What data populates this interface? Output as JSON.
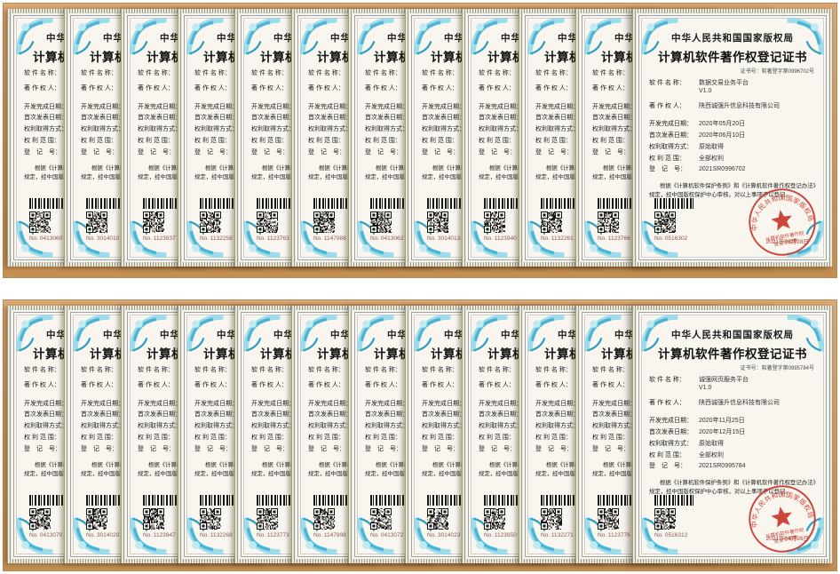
{
  "labels": {
    "authority": "中华人民共和国国家版权局",
    "title": "计算机软件著作权登记证书",
    "fields": {
      "name": "软 件 名 称：",
      "owner": "著 作 权 人：",
      "dev_date": "开发完成日期：",
      "pub_date": "首次发表日期：",
      "acq_method": "权利取得方式：",
      "scope": "权 利 范 围：",
      "reg_no": "登　记　号："
    },
    "statement_line1": "根据《计算机软件保护条例》和《计算机软件著作权登记办法》的",
    "statement_line2": "规定，经中国版权保护中心审核，对以上事项予以登记。",
    "seal_ring_text": "中华人民共和国国家版权局",
    "seal_inner_line1": "计算机软件著作权",
    "seal_inner_line2": "登记专用章"
  },
  "colors": {
    "panel": "#d29d64",
    "paper": "#f8f6ef",
    "flourish_teal": "#5cc3dd",
    "seal_red": "#c9382c",
    "serial_red": "#8a5a50"
  },
  "rows": [
    {
      "certs": [
        {
          "serial": "No. 0413060"
        },
        {
          "serial": "No. 3014010"
        },
        {
          "serial": "No. 1123937"
        },
        {
          "serial": "No. 1132258"
        },
        {
          "serial": "No. 1123763"
        },
        {
          "serial": "No. 1147988"
        },
        {
          "serial": "No. 0413062"
        },
        {
          "serial": "No. 3014013"
        },
        {
          "serial": "No. 1123940"
        },
        {
          "serial": "No. 1132261"
        },
        {
          "serial": "No. 1123766"
        },
        {
          "serial": "No. 0516302",
          "cert_no": "证书号：软著登字第0996702号",
          "name": "数据交易业务平台",
          "version": "V1.0",
          "owner": "陕西诚强升信息科技有限公司",
          "dev_date": "2020年05月20日",
          "pub_date": "2020年06月10日",
          "acq_method": "原始取得",
          "scope": "全部权利",
          "reg_no": "2021SR0996702",
          "seal_date": "2021年06月28日"
        }
      ]
    },
    {
      "certs": [
        {
          "serial": "No. 0413070"
        },
        {
          "serial": "No. 3014020"
        },
        {
          "serial": "No. 1123947"
        },
        {
          "serial": "No. 1132268"
        },
        {
          "serial": "No. 1123773"
        },
        {
          "serial": "No. 1147998"
        },
        {
          "serial": "No. 0413072"
        },
        {
          "serial": "No. 3014023"
        },
        {
          "serial": "No. 1123950"
        },
        {
          "serial": "No. 1132271"
        },
        {
          "serial": "No. 1123776"
        },
        {
          "serial": "No. 0516312",
          "cert_no": "证书号：软著登字第0995784号",
          "name": "诚强网页服务平台",
          "version": "V1.0",
          "owner": "陕西诚强升信息科技有限公司",
          "dev_date": "2020年11月25日",
          "pub_date": "2020年12月15日",
          "acq_method": "原始取得",
          "scope": "全部权利",
          "reg_no": "2021SR0995784",
          "seal_date": "2021年04月26日"
        }
      ]
    }
  ]
}
